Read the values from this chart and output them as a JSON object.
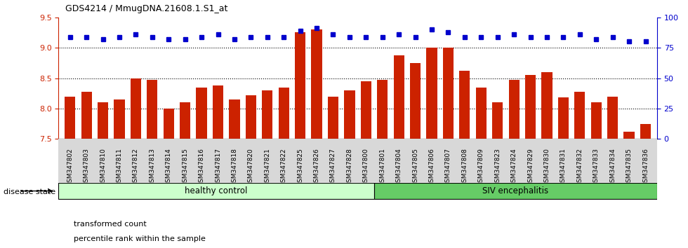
{
  "title": "GDS4214 / MmugDNA.21608.1.S1_at",
  "samples": [
    "GSM347802",
    "GSM347803",
    "GSM347810",
    "GSM347811",
    "GSM347812",
    "GSM347813",
    "GSM347814",
    "GSM347815",
    "GSM347816",
    "GSM347817",
    "GSM347818",
    "GSM347820",
    "GSM347821",
    "GSM347822",
    "GSM347825",
    "GSM347826",
    "GSM347827",
    "GSM347828",
    "GSM347800",
    "GSM347801",
    "GSM347804",
    "GSM347805",
    "GSM347806",
    "GSM347807",
    "GSM347808",
    "GSM347809",
    "GSM347823",
    "GSM347824",
    "GSM347829",
    "GSM347830",
    "GSM347831",
    "GSM347832",
    "GSM347833",
    "GSM347834",
    "GSM347835",
    "GSM347836"
  ],
  "bar_values": [
    8.2,
    8.28,
    8.1,
    8.15,
    8.5,
    8.47,
    8.0,
    8.1,
    8.35,
    8.38,
    8.15,
    8.22,
    8.3,
    8.35,
    9.25,
    9.3,
    8.2,
    8.3,
    8.45,
    8.47,
    8.88,
    8.75,
    9.0,
    9.0,
    8.62,
    8.35,
    8.1,
    8.47,
    8.55,
    8.6,
    8.18,
    8.27,
    8.1,
    8.2,
    7.62,
    7.75
  ],
  "percentile_right": [
    84,
    84,
    82,
    84,
    86,
    84,
    82,
    82,
    84,
    86,
    82,
    84,
    84,
    84,
    89,
    91,
    86,
    84,
    84,
    84,
    86,
    84,
    90,
    88,
    84,
    84,
    84,
    86,
    84,
    84,
    84,
    86,
    82,
    84,
    80,
    80
  ],
  "healthy_count": 19,
  "bar_color": "#cc2200",
  "dot_color": "#0000cc",
  "ylim_left": [
    7.5,
    9.5
  ],
  "ylim_right": [
    0,
    100
  ],
  "yticks_left": [
    7.5,
    8.0,
    8.5,
    9.0,
    9.5
  ],
  "yticks_right": [
    0,
    25,
    50,
    75,
    100
  ],
  "grid_values": [
    8.0,
    8.5,
    9.0
  ],
  "healthy_label": "healthy control",
  "siv_label": "SIV encephalitis",
  "disease_state_label": "disease state",
  "legend_bar_label": "transformed count",
  "legend_dot_label": "percentile rank within the sample",
  "healthy_color": "#ccffcc",
  "siv_color": "#66cc66",
  "bg_color": "#d8d8d8"
}
